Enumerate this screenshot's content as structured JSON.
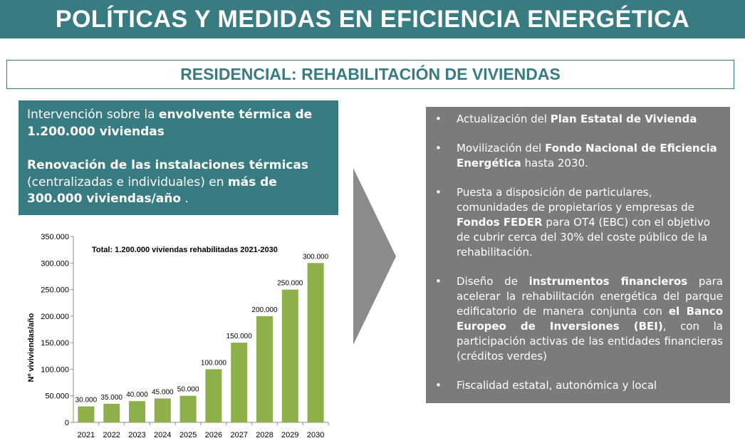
{
  "header": {
    "title": "POLÍTICAS Y MEDIDAS EN EFICIENCIA ENERGÉTICA"
  },
  "subheader": {
    "title": "RESIDENCIAL: REHABILITACIÓN DE VIVIENDAS"
  },
  "left_box": {
    "p1_plain": "Intervención sobre la ",
    "p1_bold": "envolvente térmica de 1.200.000 viviendas",
    "p2_bold": "Renovación de las instalaciones térmicas",
    "p2_plain": " (centralizadas e individuales) en ",
    "p2_bold2": "más de 300.000 viviendas/año",
    "p2_end": " ."
  },
  "right_box": {
    "b1_a": "Actualización del ",
    "b1_b": "Plan Estatal de Vivienda",
    "b2_a": "Movilización del ",
    "b2_b": "Fondo Nacional de Eficiencia Energética",
    "b2_c": " hasta 2030.",
    "b3_a": "Puesta a disposición de particulares, comunidades de propietarios y empresas de ",
    "b3_b": "Fondos FEDER",
    "b3_c": " para OT4 (EBC) con el objetivo de cubrir cerca del 30% del coste público de la rehabilitación.",
    "b4_a": "Diseño de ",
    "b4_b": "instrumentos financieros",
    "b4_c": " para acelerar la rehabilitación energética del parque edificatorio de manera conjunta con ",
    "b4_d": "el Banco Europeo de Inversiones (BEI)",
    "b4_e": ", con la participación activas de las entidades financieras (créditos verdes)",
    "b5": "Fiscalidad estatal, autonómica y local"
  },
  "chart_data": {
    "type": "bar",
    "title": "Total: 1.200.000 viviendas rehabilitadas 2021-2030",
    "xlabel": "",
    "ylabel": "Nº viviviendas/año",
    "categories": [
      "2021",
      "2022",
      "2023",
      "2024",
      "2025",
      "2026",
      "2027",
      "2028",
      "2029",
      "2030"
    ],
    "values": [
      30000,
      35000,
      40000,
      45000,
      50000,
      100000,
      150000,
      200000,
      250000,
      300000
    ],
    "value_labels": [
      "30.000",
      "35.000",
      "40.000",
      "45.000",
      "50.000",
      "100.000",
      "150.000",
      "200.000",
      "250.000",
      "300.000"
    ],
    "yticks": [
      0,
      50000,
      100000,
      150000,
      200000,
      250000,
      300000,
      350000
    ],
    "ytick_labels": [
      "0",
      "50.000",
      "100.000",
      "150.000",
      "200.000",
      "250.000",
      "300.000",
      "350.000"
    ],
    "ylim": [
      0,
      350000
    ],
    "grid": false,
    "bar_color": "#8db04b"
  },
  "colors": {
    "teal": "#387c82",
    "gray": "#7b7b7b",
    "bar": "#8db04b"
  }
}
